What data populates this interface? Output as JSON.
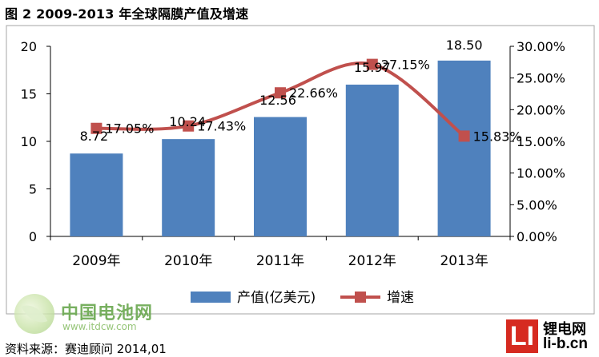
{
  "figure": {
    "title": "图 2 2009-2013 年全球隔膜产值及增速",
    "source": "资料来源：赛迪顾问 2014,01"
  },
  "watermarks": {
    "left_name": "中国电池网",
    "left_url": "www.itdcw.com",
    "right_logo": "LI",
    "right_name": "锂电网",
    "right_url": "li-b.cn"
  },
  "colors": {
    "bar": "#4f81bd",
    "line": "#c0504d",
    "axis": "#000000",
    "frame": "#a6a6a6"
  },
  "chart_data": {
    "type": "bar",
    "categories": [
      "2009年",
      "2010年",
      "2011年",
      "2012年",
      "2013年"
    ],
    "series": [
      {
        "name": "产值(亿美元)",
        "type": "bar",
        "axis": "left",
        "values": [
          8.72,
          10.24,
          12.56,
          15.97,
          18.5
        ],
        "labels": [
          "8.72",
          "10.24",
          "12.56",
          "15.97",
          "18.50"
        ]
      },
      {
        "name": "增速",
        "type": "line",
        "axis": "right",
        "values": [
          17.05,
          17.43,
          22.66,
          27.15,
          15.83
        ],
        "labels": [
          "17.05%",
          "17.43%",
          "22.66%",
          "27.15%",
          "15.83%"
        ]
      }
    ],
    "y_left": {
      "range": [
        0,
        20
      ],
      "ticks": [
        0,
        5,
        10,
        15,
        20
      ],
      "tick_labels": [
        "0",
        "5",
        "10",
        "15",
        "20"
      ]
    },
    "y_right": {
      "range": [
        0,
        30
      ],
      "ticks": [
        0,
        5,
        10,
        15,
        20,
        25,
        30
      ],
      "tick_labels": [
        "0.00%",
        "5.00%",
        "10.00%",
        "15.00%",
        "20.00%",
        "25.00%",
        "30.00%"
      ]
    },
    "grid": false,
    "legend_position": "bottom"
  }
}
